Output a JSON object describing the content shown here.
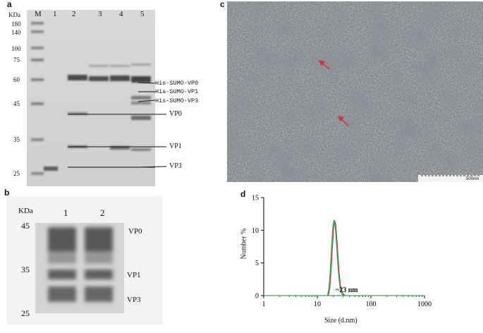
{
  "panel_a": {
    "letter": "a",
    "kda_label": "KDa",
    "markers": [
      "180",
      "140",
      "100",
      "75",
      "60",
      "45",
      "35",
      "25"
    ],
    "lanes": [
      "M",
      "1",
      "2",
      "3",
      "4",
      "5"
    ],
    "band_labels": [
      "His-SUMO-VP0",
      "His-SUMO-VP1",
      "His-SUMO-VP3",
      "VP0",
      "VP1",
      "VP3"
    ]
  },
  "panel_b": {
    "letter": "b",
    "kda_label": "KDa",
    "markers": [
      "45",
      "35",
      "25"
    ],
    "lanes": [
      "1",
      "2"
    ],
    "band_labels": [
      "VP0",
      "VP1",
      "VP3"
    ]
  },
  "panel_c": {
    "letter": "c",
    "scale_label": "500nm"
  },
  "panel_d": {
    "letter": "d",
    "chart_data": {
      "type": "line",
      "title": "",
      "xlabel": "Size (d.nm)",
      "ylabel": "Number %",
      "xscale": "log",
      "xlim": [
        1,
        1000
      ],
      "ylim": [
        0,
        15
      ],
      "xticks": [
        "1",
        "10",
        "100",
        "1000"
      ],
      "yticks": [
        "0",
        "5",
        "10",
        "15"
      ],
      "annotation": "~23 nm",
      "series": [
        {
          "color": "#c0392b",
          "x": [
            16,
            17,
            18,
            19,
            20,
            21,
            22,
            23,
            24,
            25,
            26,
            27,
            28,
            30,
            32,
            34
          ],
          "values": [
            0,
            1.0,
            3.5,
            7.0,
            10.0,
            11.5,
            11.0,
            9.0,
            6.8,
            4.5,
            2.8,
            1.6,
            0.9,
            0.3,
            0.1,
            0
          ]
        },
        {
          "color": "#27ae60",
          "x": [
            15.5,
            16.5,
            17.5,
            18.5,
            19.5,
            20.5,
            21.5,
            22.5,
            23.5,
            24.5,
            25.5,
            26.5,
            27.5,
            29,
            31,
            33
          ],
          "values": [
            0,
            1.2,
            4.0,
            7.8,
            10.6,
            11.6,
            10.7,
            8.6,
            6.2,
            4.0,
            2.4,
            1.3,
            0.7,
            0.2,
            0.05,
            0
          ]
        }
      ]
    }
  }
}
